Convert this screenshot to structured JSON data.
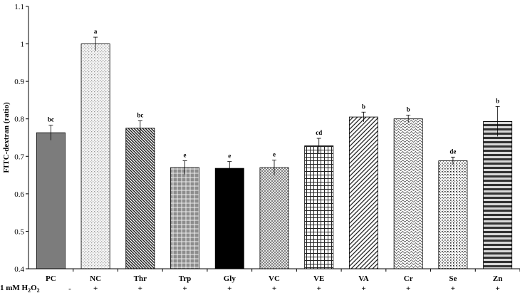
{
  "chart_data": {
    "type": "bar",
    "title": "",
    "xlabel": "",
    "ylabel": "FITC-dextran (ratio)",
    "ylim": [
      0.4,
      1.1
    ],
    "yticks": [
      "0.4",
      "0.5",
      "0.6",
      "0.7",
      "0.8",
      "0.9",
      "1",
      "1.1"
    ],
    "categories": [
      "PC",
      "NC",
      "Thr",
      "Trp",
      "Gly",
      "VC",
      "VE",
      "VA",
      "Cr",
      "Se",
      "Zn"
    ],
    "values": [
      0.763,
      1.0,
      0.775,
      0.67,
      0.668,
      0.67,
      0.728,
      0.805,
      0.8,
      0.688,
      0.793
    ],
    "errors": [
      0.02,
      0.018,
      0.02,
      0.018,
      0.018,
      0.02,
      0.02,
      0.013,
      0.01,
      0.01,
      0.04
    ],
    "significance_letters": [
      "bc",
      "a",
      "bc",
      "e",
      "e",
      "e",
      "cd",
      "b",
      "b",
      "de",
      "b"
    ],
    "treatment": {
      "label_parts": [
        "1 mM H",
        "2",
        "O",
        "2"
      ],
      "values": [
        "-",
        "+",
        "+",
        "+",
        "+",
        "+",
        "+",
        "+",
        "+",
        "+",
        "+"
      ]
    }
  }
}
